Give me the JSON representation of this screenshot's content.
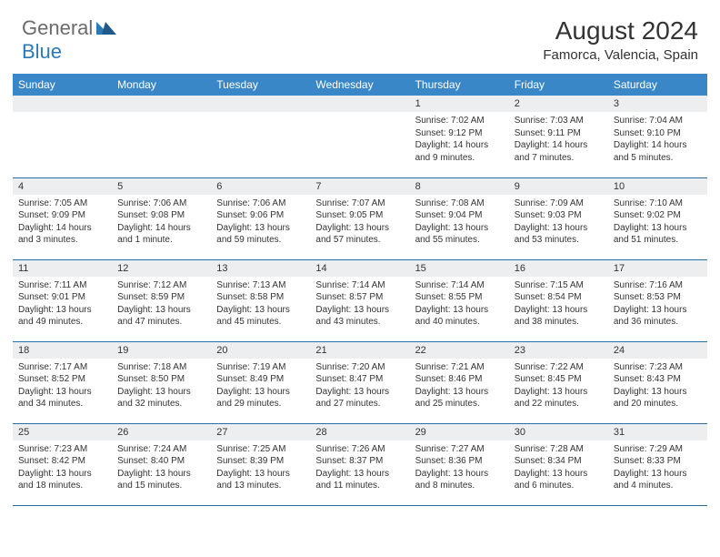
{
  "brand": {
    "part1": "General",
    "part2": "Blue"
  },
  "header": {
    "month_title": "August 2024",
    "location": "Famorca, Valencia, Spain"
  },
  "colors": {
    "header_bg": "#3a87c8",
    "header_text": "#ffffff",
    "daynum_bg": "#eceeef",
    "row_divider": "#2a6fa8",
    "body_text": "#333333",
    "logo_gray": "#6b6b6b",
    "logo_blue": "#2a7ab8"
  },
  "typography": {
    "month_title_size": 28,
    "location_size": 15,
    "day_header_size": 12,
    "daynum_size": 11,
    "content_size": 10
  },
  "day_headers": [
    "Sunday",
    "Monday",
    "Tuesday",
    "Wednesday",
    "Thursday",
    "Friday",
    "Saturday"
  ],
  "weeks": [
    [
      {
        "num": "",
        "sunrise": "",
        "sunset": "",
        "daylight": ""
      },
      {
        "num": "",
        "sunrise": "",
        "sunset": "",
        "daylight": ""
      },
      {
        "num": "",
        "sunrise": "",
        "sunset": "",
        "daylight": ""
      },
      {
        "num": "",
        "sunrise": "",
        "sunset": "",
        "daylight": ""
      },
      {
        "num": "1",
        "sunrise": "Sunrise: 7:02 AM",
        "sunset": "Sunset: 9:12 PM",
        "daylight": "Daylight: 14 hours and 9 minutes."
      },
      {
        "num": "2",
        "sunrise": "Sunrise: 7:03 AM",
        "sunset": "Sunset: 9:11 PM",
        "daylight": "Daylight: 14 hours and 7 minutes."
      },
      {
        "num": "3",
        "sunrise": "Sunrise: 7:04 AM",
        "sunset": "Sunset: 9:10 PM",
        "daylight": "Daylight: 14 hours and 5 minutes."
      }
    ],
    [
      {
        "num": "4",
        "sunrise": "Sunrise: 7:05 AM",
        "sunset": "Sunset: 9:09 PM",
        "daylight": "Daylight: 14 hours and 3 minutes."
      },
      {
        "num": "5",
        "sunrise": "Sunrise: 7:06 AM",
        "sunset": "Sunset: 9:08 PM",
        "daylight": "Daylight: 14 hours and 1 minute."
      },
      {
        "num": "6",
        "sunrise": "Sunrise: 7:06 AM",
        "sunset": "Sunset: 9:06 PM",
        "daylight": "Daylight: 13 hours and 59 minutes."
      },
      {
        "num": "7",
        "sunrise": "Sunrise: 7:07 AM",
        "sunset": "Sunset: 9:05 PM",
        "daylight": "Daylight: 13 hours and 57 minutes."
      },
      {
        "num": "8",
        "sunrise": "Sunrise: 7:08 AM",
        "sunset": "Sunset: 9:04 PM",
        "daylight": "Daylight: 13 hours and 55 minutes."
      },
      {
        "num": "9",
        "sunrise": "Sunrise: 7:09 AM",
        "sunset": "Sunset: 9:03 PM",
        "daylight": "Daylight: 13 hours and 53 minutes."
      },
      {
        "num": "10",
        "sunrise": "Sunrise: 7:10 AM",
        "sunset": "Sunset: 9:02 PM",
        "daylight": "Daylight: 13 hours and 51 minutes."
      }
    ],
    [
      {
        "num": "11",
        "sunrise": "Sunrise: 7:11 AM",
        "sunset": "Sunset: 9:01 PM",
        "daylight": "Daylight: 13 hours and 49 minutes."
      },
      {
        "num": "12",
        "sunrise": "Sunrise: 7:12 AM",
        "sunset": "Sunset: 8:59 PM",
        "daylight": "Daylight: 13 hours and 47 minutes."
      },
      {
        "num": "13",
        "sunrise": "Sunrise: 7:13 AM",
        "sunset": "Sunset: 8:58 PM",
        "daylight": "Daylight: 13 hours and 45 minutes."
      },
      {
        "num": "14",
        "sunrise": "Sunrise: 7:14 AM",
        "sunset": "Sunset: 8:57 PM",
        "daylight": "Daylight: 13 hours and 43 minutes."
      },
      {
        "num": "15",
        "sunrise": "Sunrise: 7:14 AM",
        "sunset": "Sunset: 8:55 PM",
        "daylight": "Daylight: 13 hours and 40 minutes."
      },
      {
        "num": "16",
        "sunrise": "Sunrise: 7:15 AM",
        "sunset": "Sunset: 8:54 PM",
        "daylight": "Daylight: 13 hours and 38 minutes."
      },
      {
        "num": "17",
        "sunrise": "Sunrise: 7:16 AM",
        "sunset": "Sunset: 8:53 PM",
        "daylight": "Daylight: 13 hours and 36 minutes."
      }
    ],
    [
      {
        "num": "18",
        "sunrise": "Sunrise: 7:17 AM",
        "sunset": "Sunset: 8:52 PM",
        "daylight": "Daylight: 13 hours and 34 minutes."
      },
      {
        "num": "19",
        "sunrise": "Sunrise: 7:18 AM",
        "sunset": "Sunset: 8:50 PM",
        "daylight": "Daylight: 13 hours and 32 minutes."
      },
      {
        "num": "20",
        "sunrise": "Sunrise: 7:19 AM",
        "sunset": "Sunset: 8:49 PM",
        "daylight": "Daylight: 13 hours and 29 minutes."
      },
      {
        "num": "21",
        "sunrise": "Sunrise: 7:20 AM",
        "sunset": "Sunset: 8:47 PM",
        "daylight": "Daylight: 13 hours and 27 minutes."
      },
      {
        "num": "22",
        "sunrise": "Sunrise: 7:21 AM",
        "sunset": "Sunset: 8:46 PM",
        "daylight": "Daylight: 13 hours and 25 minutes."
      },
      {
        "num": "23",
        "sunrise": "Sunrise: 7:22 AM",
        "sunset": "Sunset: 8:45 PM",
        "daylight": "Daylight: 13 hours and 22 minutes."
      },
      {
        "num": "24",
        "sunrise": "Sunrise: 7:23 AM",
        "sunset": "Sunset: 8:43 PM",
        "daylight": "Daylight: 13 hours and 20 minutes."
      }
    ],
    [
      {
        "num": "25",
        "sunrise": "Sunrise: 7:23 AM",
        "sunset": "Sunset: 8:42 PM",
        "daylight": "Daylight: 13 hours and 18 minutes."
      },
      {
        "num": "26",
        "sunrise": "Sunrise: 7:24 AM",
        "sunset": "Sunset: 8:40 PM",
        "daylight": "Daylight: 13 hours and 15 minutes."
      },
      {
        "num": "27",
        "sunrise": "Sunrise: 7:25 AM",
        "sunset": "Sunset: 8:39 PM",
        "daylight": "Daylight: 13 hours and 13 minutes."
      },
      {
        "num": "28",
        "sunrise": "Sunrise: 7:26 AM",
        "sunset": "Sunset: 8:37 PM",
        "daylight": "Daylight: 13 hours and 11 minutes."
      },
      {
        "num": "29",
        "sunrise": "Sunrise: 7:27 AM",
        "sunset": "Sunset: 8:36 PM",
        "daylight": "Daylight: 13 hours and 8 minutes."
      },
      {
        "num": "30",
        "sunrise": "Sunrise: 7:28 AM",
        "sunset": "Sunset: 8:34 PM",
        "daylight": "Daylight: 13 hours and 6 minutes."
      },
      {
        "num": "31",
        "sunrise": "Sunrise: 7:29 AM",
        "sunset": "Sunset: 8:33 PM",
        "daylight": "Daylight: 13 hours and 4 minutes."
      }
    ]
  ]
}
